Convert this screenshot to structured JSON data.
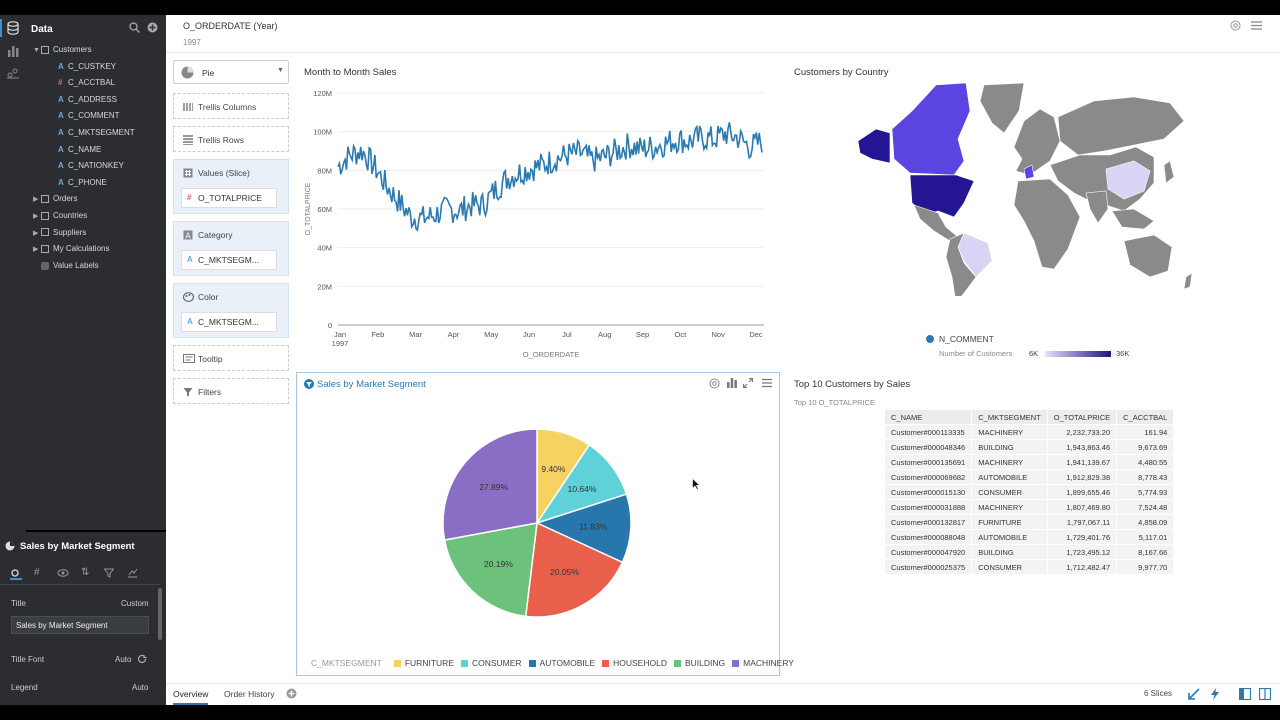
{
  "sidebar": {
    "title": "Data",
    "tree": [
      {
        "label": "Customers",
        "kind": "folder-open",
        "level": 0
      },
      {
        "label": "C_CUSTKEY",
        "kind": "attr",
        "level": 1
      },
      {
        "label": "C_ACCTBAL",
        "kind": "measure",
        "level": 1
      },
      {
        "label": "C_ADDRESS",
        "kind": "attr",
        "level": 1
      },
      {
        "label": "C_COMMENT",
        "kind": "attr",
        "level": 1
      },
      {
        "label": "C_MKTSEGMENT",
        "kind": "attr",
        "level": 1
      },
      {
        "label": "C_NAME",
        "kind": "attr",
        "level": 1
      },
      {
        "label": "C_NATIONKEY",
        "kind": "attr",
        "level": 1
      },
      {
        "label": "C_PHONE",
        "kind": "attr",
        "level": 1
      },
      {
        "label": "Orders",
        "kind": "folder",
        "level": 0
      },
      {
        "label": "Countries",
        "kind": "folder",
        "level": 0
      },
      {
        "label": "Suppliers",
        "kind": "folder",
        "level": 0
      },
      {
        "label": "My Calculations",
        "kind": "folder",
        "level": 0
      },
      {
        "label": "Value Labels",
        "kind": "labels",
        "level": 0
      }
    ]
  },
  "properties": {
    "title": "Sales by Market Segment",
    "title_label": "Title",
    "title_mode": "Custom",
    "title_value": "Sales by Market Segment",
    "title_font_label": "Title Font",
    "title_font_value": "Auto",
    "legend_label": "Legend",
    "legend_value": "Auto"
  },
  "filter_bar": {
    "label": "O_ORDERDATE (Year)",
    "value": "1997"
  },
  "grammar": {
    "chart_type": "Pie",
    "trellis_columns": "Trellis Columns",
    "trellis_rows": "Trellis Rows",
    "values_label": "Values (Slice)",
    "values_pill": "O_TOTALPRICE",
    "category_label": "Category",
    "category_pill": "C_MKTSEGM...",
    "color_label": "Color",
    "color_pill": "C_MKTSEGM...",
    "tooltip_label": "Tooltip",
    "filters_label": "Filters"
  },
  "line_panel": {
    "title": "Month to Month Sales"
  },
  "map_panel": {
    "title": "Customers by Country",
    "legend_title": "N_COMMENT",
    "legend_sub": "Number of Customers",
    "legend_min": "6K",
    "legend_max": "36K",
    "color_low": "#d9d4f5",
    "color_high": "#1e1478"
  },
  "pie_panel": {
    "title": "Sales by Market Segment",
    "legend_title": "C_MKTSEGMENT"
  },
  "table_panel": {
    "title": "Top 10 Customers by Sales",
    "subtitle": "Top 10 O_TOTALPRICE",
    "columns": [
      "C_NAME",
      "C_MKTSEGMENT",
      "O_TOTALPRICE",
      "C_ACCTBAL"
    ],
    "rows": [
      [
        "Customer#000113335",
        "MACHINERY",
        "2,232,733.20",
        "161.94"
      ],
      [
        "Customer#000048346",
        "BUILDING",
        "1,943,863.46",
        "9,673.69"
      ],
      [
        "Customer#000135691",
        "MACHINERY",
        "1,941,139.67",
        "4,480.55"
      ],
      [
        "Customer#000069682",
        "AUTOMOBILE",
        "1,912,829.38",
        "8,778.43"
      ],
      [
        "Customer#000015130",
        "CONSUMER",
        "1,899,655.46",
        "5,774.93"
      ],
      [
        "Customer#000031888",
        "MACHINERY",
        "1,807,469.80",
        "7,524.48"
      ],
      [
        "Customer#000132817",
        "FURNITURE",
        "1,797,067.11",
        "4,858.09"
      ],
      [
        "Customer#000088048",
        "AUTOMOBILE",
        "1,729,401.76",
        "5,117.01"
      ],
      [
        "Customer#000047920",
        "BUILDING",
        "1,723,495.12",
        "8,167.66"
      ],
      [
        "Customer#000025375",
        "CONSUMER",
        "1,712,482.47",
        "9,977.70"
      ]
    ]
  },
  "tabs": {
    "items": [
      "Overview",
      "Order History"
    ],
    "active": 0,
    "slices": "6 Slices"
  },
  "chart_data": [
    {
      "type": "line",
      "title": "Month to Month Sales",
      "xlabel": "O_ORDERDATE",
      "ylabel": "O_TOTALPRICE",
      "x_ticks": [
        "Jan 1997",
        "Feb",
        "Mar",
        "Apr",
        "May",
        "Jun",
        "Jul",
        "Aug",
        "Sep",
        "Oct",
        "Nov",
        "Dec"
      ],
      "y_ticks": [
        "0",
        "20M",
        "40M",
        "60M",
        "80M",
        "100M",
        "120M"
      ],
      "ylim": [
        0,
        120000000
      ],
      "color": "#2a7ab0",
      "series": [
        {
          "values_approx_per_half_month": [
            82000000,
            88000000,
            90000000,
            82000000,
            72000000,
            64000000,
            56000000,
            55000000,
            57000000,
            60000000,
            59000000,
            62000000,
            62000000,
            70000000,
            76000000,
            79000000,
            81000000,
            83000000,
            86000000,
            88000000,
            89000000,
            85000000,
            87000000,
            90000000,
            93000000,
            91000000,
            92000000,
            94000000,
            96000000,
            95000000,
            97000000,
            96000000,
            99000000,
            97000000,
            92000000,
            95000000
          ]
        }
      ]
    },
    {
      "type": "pie",
      "title": "Sales by Market Segment",
      "categories": [
        "FURNITURE",
        "CONSUMER",
        "AUTOMOBILE",
        "HOUSEHOLD",
        "BUILDING",
        "MACHINERY"
      ],
      "values": [
        9.4,
        10.64,
        11.83,
        20.05,
        20.19,
        27.89
      ],
      "labels": [
        "9.40%",
        "10.64%",
        "11.83%",
        "20.05%",
        "20.19%",
        "27.89%"
      ],
      "colors": [
        "#f6d262",
        "#5ed2d8",
        "#2777ad",
        "#e8604c",
        "#6cc27a",
        "#8a6dc4"
      ]
    }
  ]
}
